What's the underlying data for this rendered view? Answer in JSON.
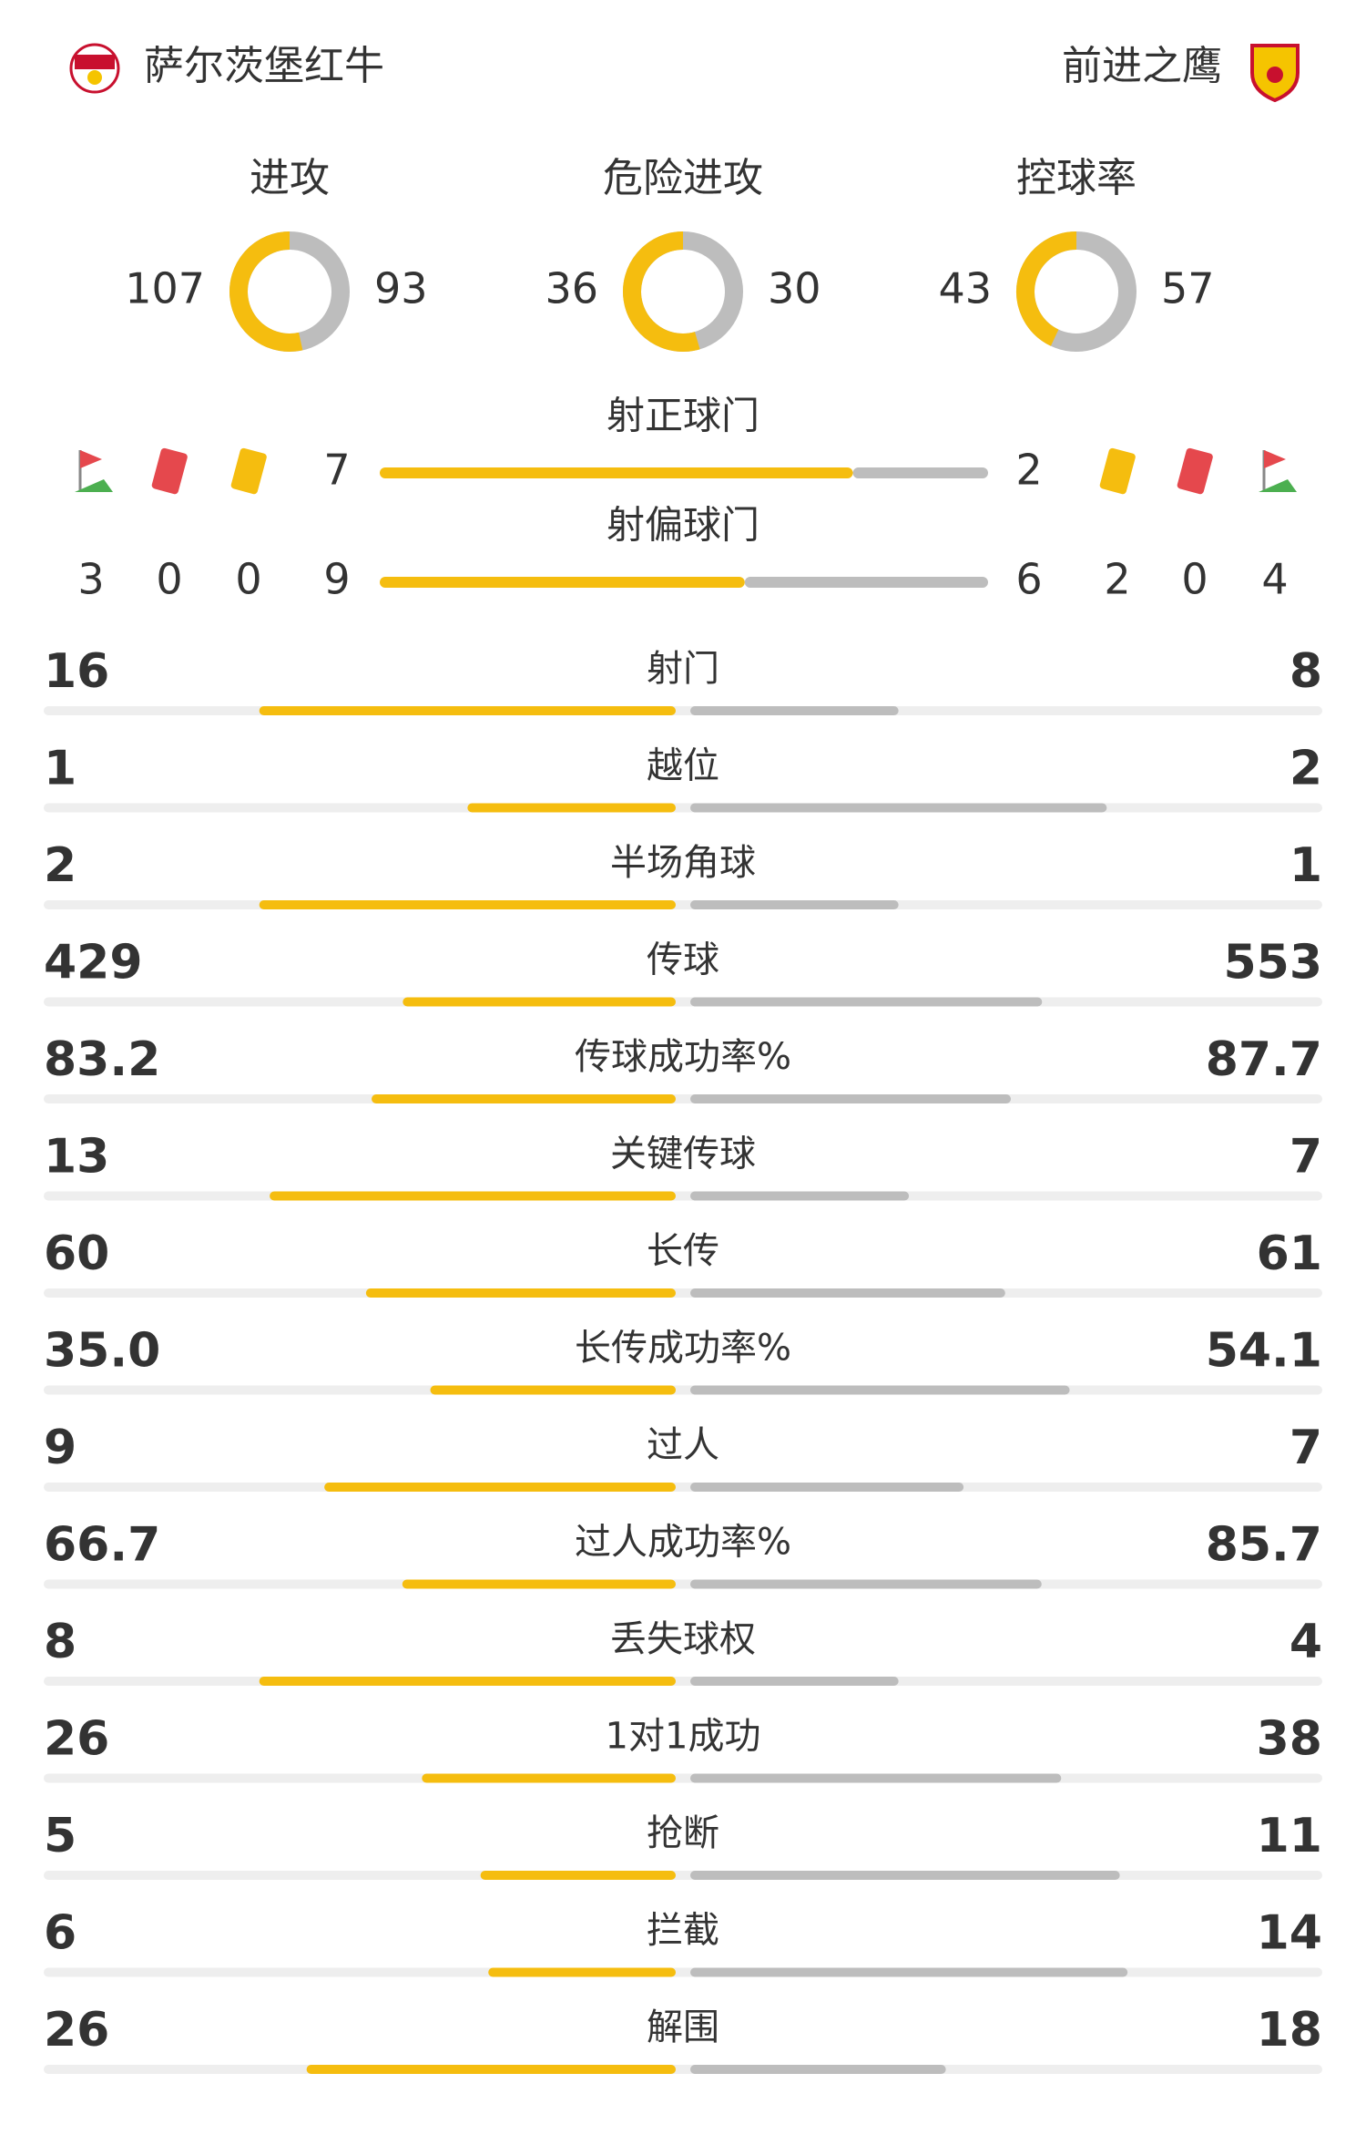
{
  "header": {
    "home": "萨尔茨堡红牛",
    "away": "前进之鹰"
  },
  "donuts": [
    {
      "label": "进攻",
      "home": 107,
      "away": 93
    },
    {
      "label": "危险进攻",
      "home": 36,
      "away": 30
    },
    {
      "label": "控球率",
      "home": 43,
      "away": 57
    }
  ],
  "events": {
    "home": {
      "corners": 3,
      "red": 0,
      "yellow": 0
    },
    "away": {
      "yellow": 2,
      "red": 0,
      "corners": 4
    }
  },
  "shots": [
    {
      "label": "射正球门",
      "home": 7,
      "away": 2
    },
    {
      "label": "射偏球门",
      "home": 9,
      "away": 6
    }
  ],
  "stats": [
    {
      "label": "射门",
      "home": 16,
      "away": 8
    },
    {
      "label": "越位",
      "home": 1,
      "away": 2
    },
    {
      "label": "半场角球",
      "home": 2,
      "away": 1
    },
    {
      "label": "传球",
      "home": 429,
      "away": 553
    },
    {
      "label": "传球成功率%",
      "home": 83.2,
      "away": 87.7
    },
    {
      "label": "关键传球",
      "home": 13,
      "away": 7
    },
    {
      "label": "长传",
      "home": 60,
      "away": 61
    },
    {
      "label": "长传成功率%",
      "home": 35,
      "home_label": "35.0",
      "away": 54.1
    },
    {
      "label": "过人",
      "home": 9,
      "away": 7
    },
    {
      "label": "过人成功率%",
      "home": 66.7,
      "away": 85.7
    },
    {
      "label": "丢失球权",
      "home": 8,
      "away": 4
    },
    {
      "label": "1对1成功",
      "home": 26,
      "away": 38
    },
    {
      "label": "抢断",
      "home": 5,
      "away": 11
    },
    {
      "label": "拦截",
      "home": 6,
      "away": 14
    },
    {
      "label": "解围",
      "home": 26,
      "away": 18
    }
  ]
}
